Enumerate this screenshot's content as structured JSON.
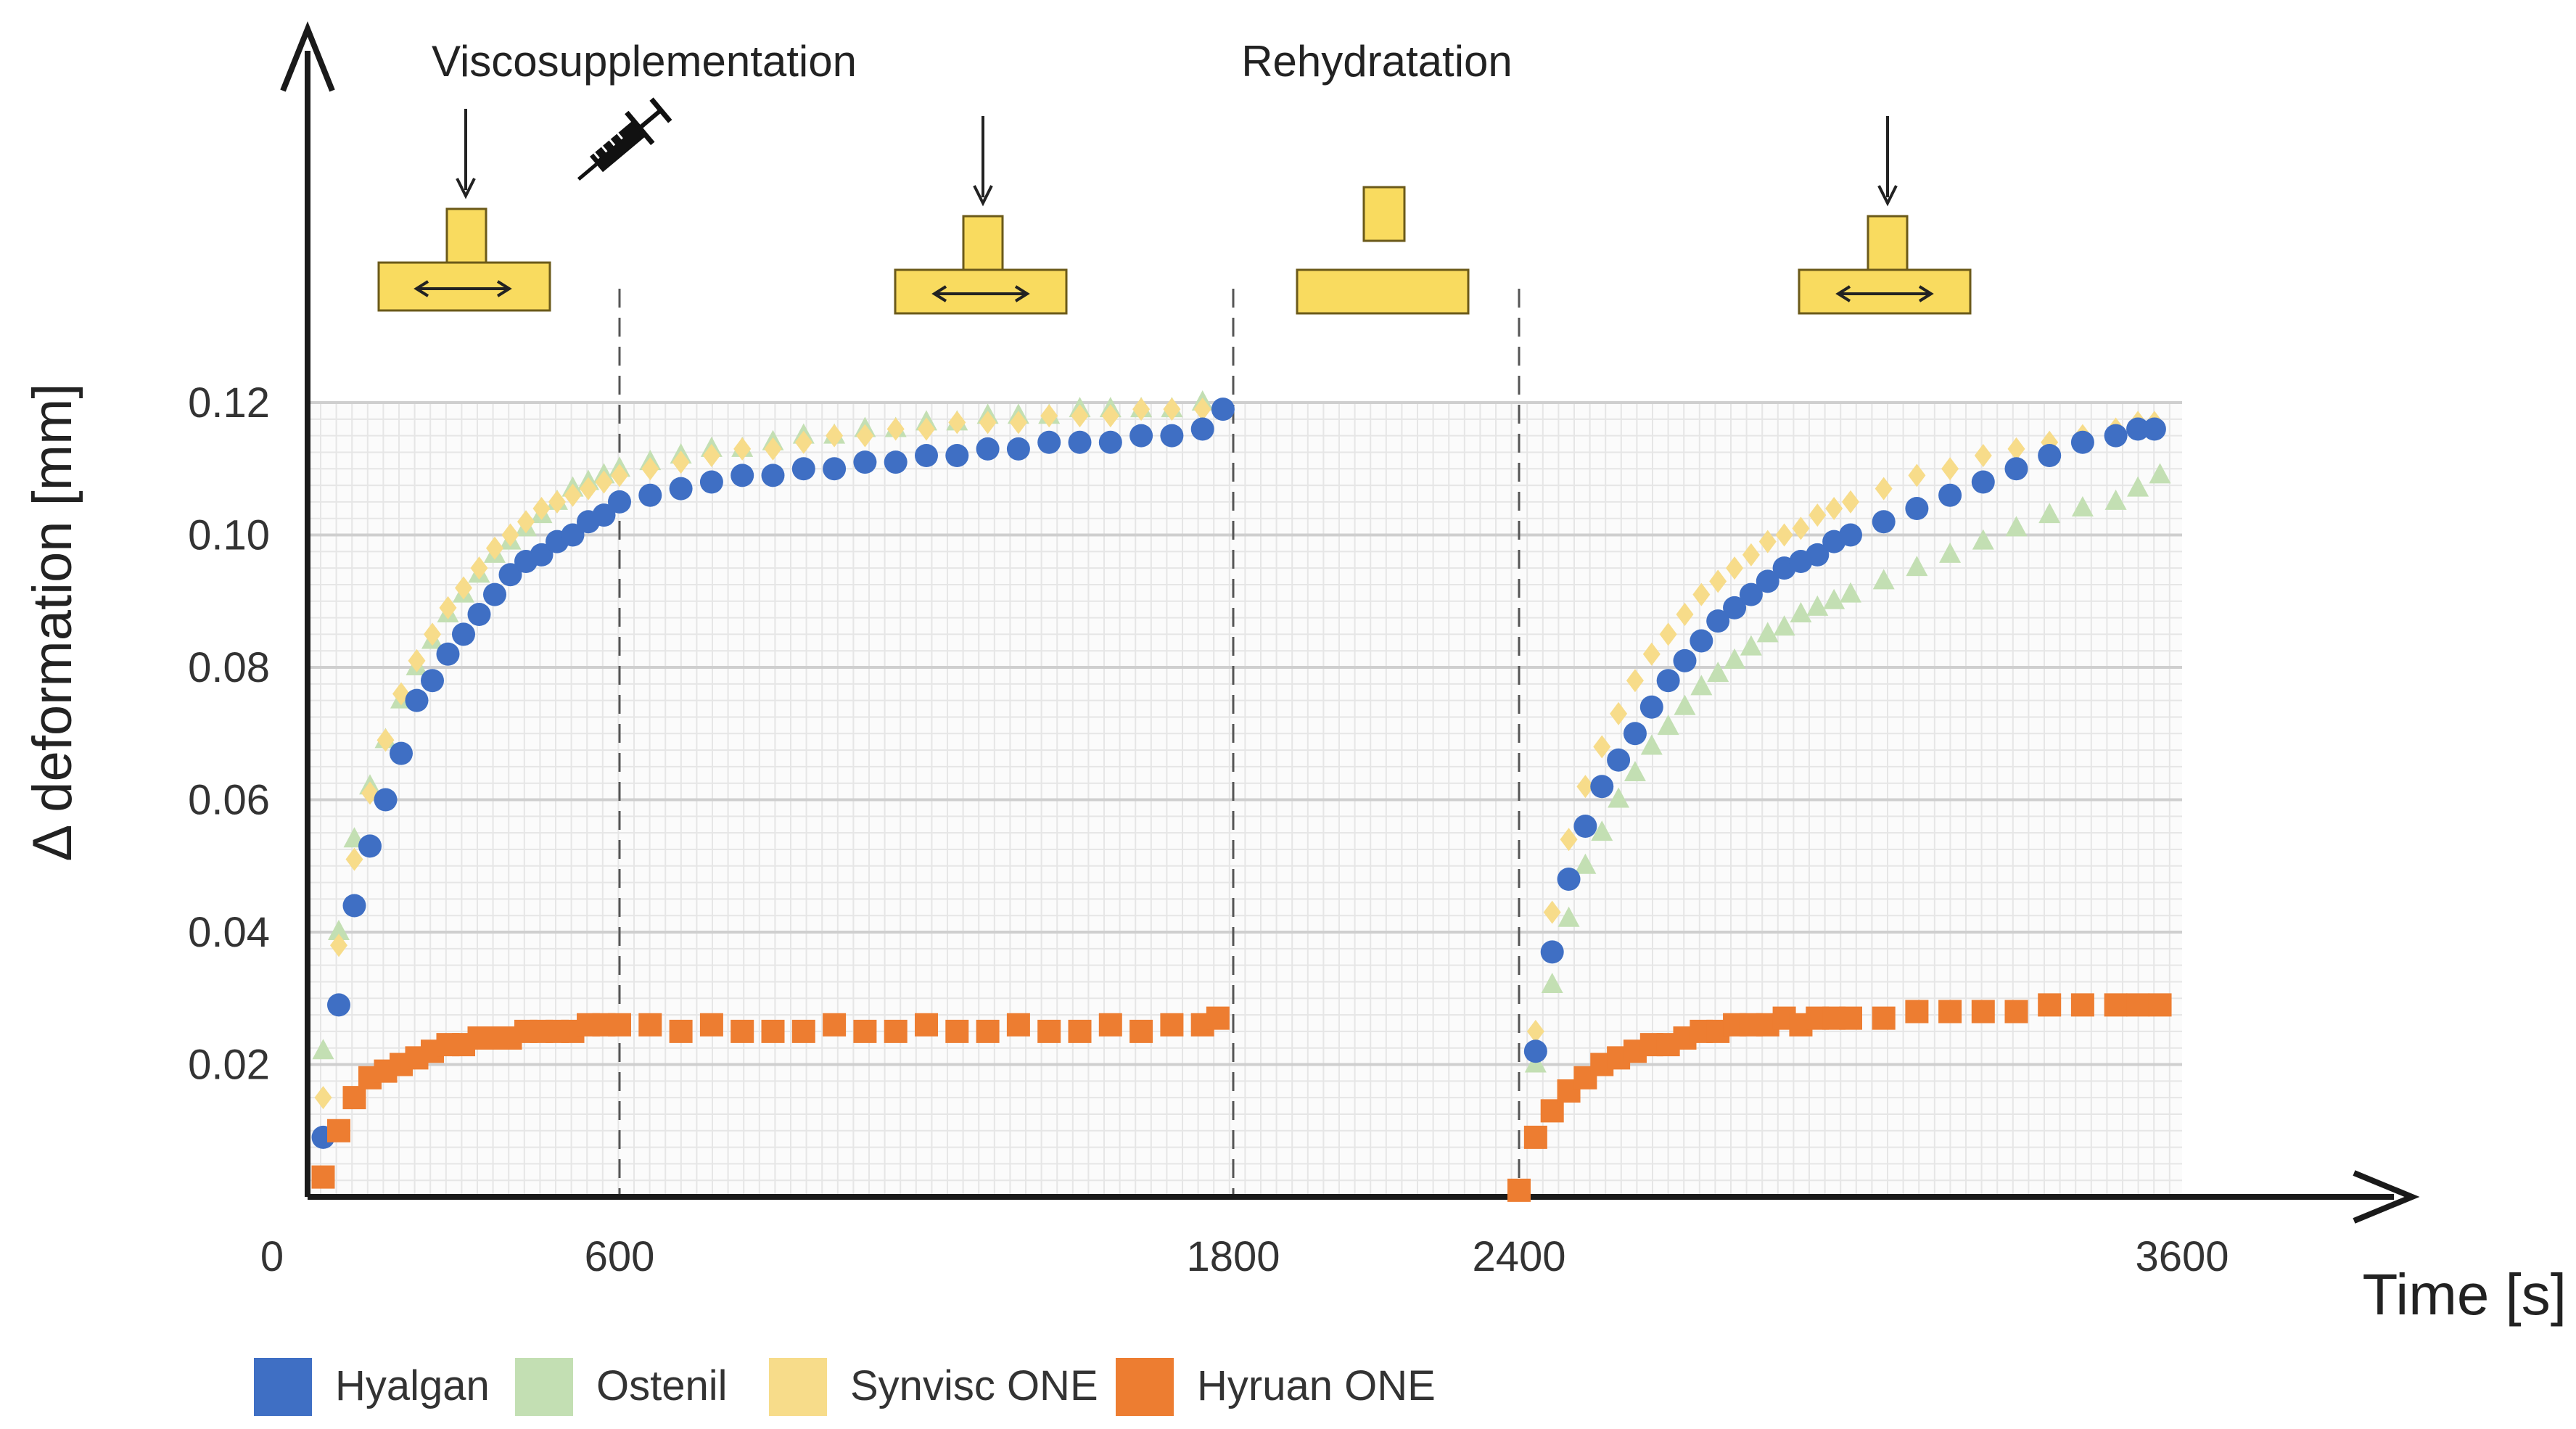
{
  "chart_data": {
    "type": "scatter",
    "title": "",
    "xlabel": "Time [s]",
    "ylabel": "Δ deformation [mm]",
    "xlim": [
      0,
      3600
    ],
    "ylim": [
      0,
      0.12
    ],
    "x_ticks": [
      "0",
      "600",
      "1800",
      "2400",
      "3600"
    ],
    "y_ticks": [
      "0.02",
      "0.04",
      "0.06",
      "0.08",
      "0.10",
      "0.12"
    ],
    "phases": [
      {
        "label": "Viscosupplementation",
        "at": 0
      },
      {
        "label": "Rehydratation",
        "at": 1800
      }
    ],
    "series": [
      {
        "name": "Hyalgan",
        "color": "#3f6fc4",
        "marker": "circle",
        "points": [
          [
            30,
            0.009
          ],
          [
            60,
            0.029
          ],
          [
            90,
            0.044
          ],
          [
            120,
            0.053
          ],
          [
            150,
            0.06
          ],
          [
            180,
            0.067
          ],
          [
            210,
            0.075
          ],
          [
            240,
            0.078
          ],
          [
            270,
            0.082
          ],
          [
            300,
            0.085
          ],
          [
            330,
            0.088
          ],
          [
            360,
            0.091
          ],
          [
            390,
            0.094
          ],
          [
            420,
            0.096
          ],
          [
            450,
            0.097
          ],
          [
            480,
            0.099
          ],
          [
            510,
            0.1
          ],
          [
            540,
            0.102
          ],
          [
            570,
            0.103
          ],
          [
            600,
            0.105
          ],
          [
            660,
            0.106
          ],
          [
            720,
            0.107
          ],
          [
            780,
            0.108
          ],
          [
            840,
            0.109
          ],
          [
            900,
            0.109
          ],
          [
            960,
            0.11
          ],
          [
            1020,
            0.11
          ],
          [
            1080,
            0.111
          ],
          [
            1140,
            0.111
          ],
          [
            1200,
            0.112
          ],
          [
            1260,
            0.112
          ],
          [
            1320,
            0.113
          ],
          [
            1380,
            0.113
          ],
          [
            1440,
            0.114
          ],
          [
            1500,
            0.114
          ],
          [
            1560,
            0.114
          ],
          [
            1620,
            0.115
          ],
          [
            1680,
            0.115
          ],
          [
            1740,
            0.116
          ],
          [
            1780,
            0.119
          ],
          [
            2430,
            0.022
          ],
          [
            2460,
            0.037
          ],
          [
            2490,
            0.048
          ],
          [
            2520,
            0.056
          ],
          [
            2550,
            0.062
          ],
          [
            2580,
            0.066
          ],
          [
            2610,
            0.07
          ],
          [
            2640,
            0.074
          ],
          [
            2670,
            0.078
          ],
          [
            2700,
            0.081
          ],
          [
            2730,
            0.084
          ],
          [
            2760,
            0.087
          ],
          [
            2790,
            0.089
          ],
          [
            2820,
            0.091
          ],
          [
            2850,
            0.093
          ],
          [
            2880,
            0.095
          ],
          [
            2910,
            0.096
          ],
          [
            2940,
            0.097
          ],
          [
            2970,
            0.099
          ],
          [
            3000,
            0.1
          ],
          [
            3060,
            0.102
          ],
          [
            3120,
            0.104
          ],
          [
            3180,
            0.106
          ],
          [
            3240,
            0.108
          ],
          [
            3300,
            0.11
          ],
          [
            3360,
            0.112
          ],
          [
            3420,
            0.114
          ],
          [
            3480,
            0.115
          ],
          [
            3520,
            0.116
          ],
          [
            3550,
            0.116
          ]
        ]
      },
      {
        "name": "Ostenil",
        "color": "#c3dfb3",
        "marker": "triangle",
        "points": [
          [
            30,
            0.022
          ],
          [
            60,
            0.04
          ],
          [
            90,
            0.054
          ],
          [
            120,
            0.062
          ],
          [
            150,
            0.069
          ],
          [
            180,
            0.075
          ],
          [
            210,
            0.08
          ],
          [
            240,
            0.084
          ],
          [
            270,
            0.088
          ],
          [
            300,
            0.091
          ],
          [
            330,
            0.094
          ],
          [
            360,
            0.097
          ],
          [
            390,
            0.099
          ],
          [
            420,
            0.101
          ],
          [
            450,
            0.103
          ],
          [
            480,
            0.105
          ],
          [
            510,
            0.107
          ],
          [
            540,
            0.108
          ],
          [
            570,
            0.109
          ],
          [
            600,
            0.11
          ],
          [
            660,
            0.111
          ],
          [
            720,
            0.112
          ],
          [
            780,
            0.113
          ],
          [
            840,
            0.113
          ],
          [
            900,
            0.114
          ],
          [
            960,
            0.115
          ],
          [
            1020,
            0.115
          ],
          [
            1080,
            0.116
          ],
          [
            1140,
            0.116
          ],
          [
            1200,
            0.117
          ],
          [
            1260,
            0.117
          ],
          [
            1320,
            0.118
          ],
          [
            1380,
            0.118
          ],
          [
            1440,
            0.118
          ],
          [
            1500,
            0.119
          ],
          [
            1560,
            0.119
          ],
          [
            1620,
            0.119
          ],
          [
            1680,
            0.119
          ],
          [
            1740,
            0.12
          ],
          [
            2430,
            0.02
          ],
          [
            2460,
            0.032
          ],
          [
            2490,
            0.042
          ],
          [
            2520,
            0.05
          ],
          [
            2550,
            0.055
          ],
          [
            2580,
            0.06
          ],
          [
            2610,
            0.064
          ],
          [
            2640,
            0.068
          ],
          [
            2670,
            0.071
          ],
          [
            2700,
            0.074
          ],
          [
            2730,
            0.077
          ],
          [
            2760,
            0.079
          ],
          [
            2790,
            0.081
          ],
          [
            2820,
            0.083
          ],
          [
            2850,
            0.085
          ],
          [
            2880,
            0.086
          ],
          [
            2910,
            0.088
          ],
          [
            2940,
            0.089
          ],
          [
            2970,
            0.09
          ],
          [
            3000,
            0.091
          ],
          [
            3060,
            0.093
          ],
          [
            3120,
            0.095
          ],
          [
            3180,
            0.097
          ],
          [
            3240,
            0.099
          ],
          [
            3300,
            0.101
          ],
          [
            3360,
            0.103
          ],
          [
            3420,
            0.104
          ],
          [
            3480,
            0.105
          ],
          [
            3520,
            0.107
          ],
          [
            3560,
            0.109
          ]
        ]
      },
      {
        "name": "Synvisc ONE",
        "color": "#f7dc8a",
        "marker": "diamond",
        "points": [
          [
            30,
            0.015
          ],
          [
            60,
            0.038
          ],
          [
            90,
            0.051
          ],
          [
            120,
            0.061
          ],
          [
            150,
            0.069
          ],
          [
            180,
            0.076
          ],
          [
            210,
            0.081
          ],
          [
            240,
            0.085
          ],
          [
            270,
            0.089
          ],
          [
            300,
            0.092
          ],
          [
            330,
            0.095
          ],
          [
            360,
            0.098
          ],
          [
            390,
            0.1
          ],
          [
            420,
            0.102
          ],
          [
            450,
            0.104
          ],
          [
            480,
            0.105
          ],
          [
            510,
            0.106
          ],
          [
            540,
            0.107
          ],
          [
            570,
            0.108
          ],
          [
            600,
            0.109
          ],
          [
            660,
            0.11
          ],
          [
            720,
            0.111
          ],
          [
            780,
            0.112
          ],
          [
            840,
            0.113
          ],
          [
            900,
            0.113
          ],
          [
            960,
            0.114
          ],
          [
            1020,
            0.115
          ],
          [
            1080,
            0.115
          ],
          [
            1140,
            0.116
          ],
          [
            1200,
            0.116
          ],
          [
            1260,
            0.117
          ],
          [
            1320,
            0.117
          ],
          [
            1380,
            0.117
          ],
          [
            1440,
            0.118
          ],
          [
            1500,
            0.118
          ],
          [
            1560,
            0.118
          ],
          [
            1620,
            0.119
          ],
          [
            1680,
            0.119
          ],
          [
            1740,
            0.119
          ],
          [
            2430,
            0.025
          ],
          [
            2460,
            0.043
          ],
          [
            2490,
            0.054
          ],
          [
            2520,
            0.062
          ],
          [
            2550,
            0.068
          ],
          [
            2580,
            0.073
          ],
          [
            2610,
            0.078
          ],
          [
            2640,
            0.082
          ],
          [
            2670,
            0.085
          ],
          [
            2700,
            0.088
          ],
          [
            2730,
            0.091
          ],
          [
            2760,
            0.093
          ],
          [
            2790,
            0.095
          ],
          [
            2820,
            0.097
          ],
          [
            2850,
            0.099
          ],
          [
            2880,
            0.1
          ],
          [
            2910,
            0.101
          ],
          [
            2940,
            0.103
          ],
          [
            2970,
            0.104
          ],
          [
            3000,
            0.105
          ],
          [
            3060,
            0.107
          ],
          [
            3120,
            0.109
          ],
          [
            3180,
            0.11
          ],
          [
            3240,
            0.112
          ],
          [
            3300,
            0.113
          ],
          [
            3360,
            0.114
          ],
          [
            3420,
            0.115
          ],
          [
            3480,
            0.116
          ],
          [
            3520,
            0.117
          ],
          [
            3550,
            0.117
          ]
        ]
      },
      {
        "name": "Hyruan ONE",
        "color": "#ed7d31",
        "marker": "square",
        "points": [
          [
            30,
            0.003
          ],
          [
            60,
            0.01
          ],
          [
            90,
            0.015
          ],
          [
            120,
            0.018
          ],
          [
            150,
            0.019
          ],
          [
            180,
            0.02
          ],
          [
            210,
            0.021
          ],
          [
            240,
            0.022
          ],
          [
            270,
            0.023
          ],
          [
            300,
            0.023
          ],
          [
            330,
            0.024
          ],
          [
            360,
            0.024
          ],
          [
            390,
            0.024
          ],
          [
            420,
            0.025
          ],
          [
            450,
            0.025
          ],
          [
            480,
            0.025
          ],
          [
            510,
            0.025
          ],
          [
            540,
            0.026
          ],
          [
            570,
            0.026
          ],
          [
            600,
            0.026
          ],
          [
            660,
            0.026
          ],
          [
            720,
            0.025
          ],
          [
            780,
            0.026
          ],
          [
            840,
            0.025
          ],
          [
            900,
            0.025
          ],
          [
            960,
            0.025
          ],
          [
            1020,
            0.026
          ],
          [
            1080,
            0.025
          ],
          [
            1140,
            0.025
          ],
          [
            1200,
            0.026
          ],
          [
            1260,
            0.025
          ],
          [
            1320,
            0.025
          ],
          [
            1380,
            0.026
          ],
          [
            1440,
            0.025
          ],
          [
            1500,
            0.025
          ],
          [
            1560,
            0.026
          ],
          [
            1620,
            0.025
          ],
          [
            1680,
            0.026
          ],
          [
            1740,
            0.026
          ],
          [
            1770,
            0.027
          ],
          [
            2400,
            0.001
          ],
          [
            2430,
            0.009
          ],
          [
            2460,
            0.013
          ],
          [
            2490,
            0.016
          ],
          [
            2520,
            0.018
          ],
          [
            2550,
            0.02
          ],
          [
            2580,
            0.021
          ],
          [
            2610,
            0.022
          ],
          [
            2640,
            0.023
          ],
          [
            2670,
            0.023
          ],
          [
            2700,
            0.024
          ],
          [
            2730,
            0.025
          ],
          [
            2760,
            0.025
          ],
          [
            2790,
            0.026
          ],
          [
            2820,
            0.026
          ],
          [
            2850,
            0.026
          ],
          [
            2880,
            0.027
          ],
          [
            2910,
            0.026
          ],
          [
            2940,
            0.027
          ],
          [
            2970,
            0.027
          ],
          [
            3000,
            0.027
          ],
          [
            3060,
            0.027
          ],
          [
            3120,
            0.028
          ],
          [
            3180,
            0.028
          ],
          [
            3240,
            0.028
          ],
          [
            3300,
            0.028
          ],
          [
            3360,
            0.029
          ],
          [
            3420,
            0.029
          ],
          [
            3480,
            0.029
          ],
          [
            3520,
            0.029
          ],
          [
            3560,
            0.029
          ]
        ]
      }
    ]
  }
}
